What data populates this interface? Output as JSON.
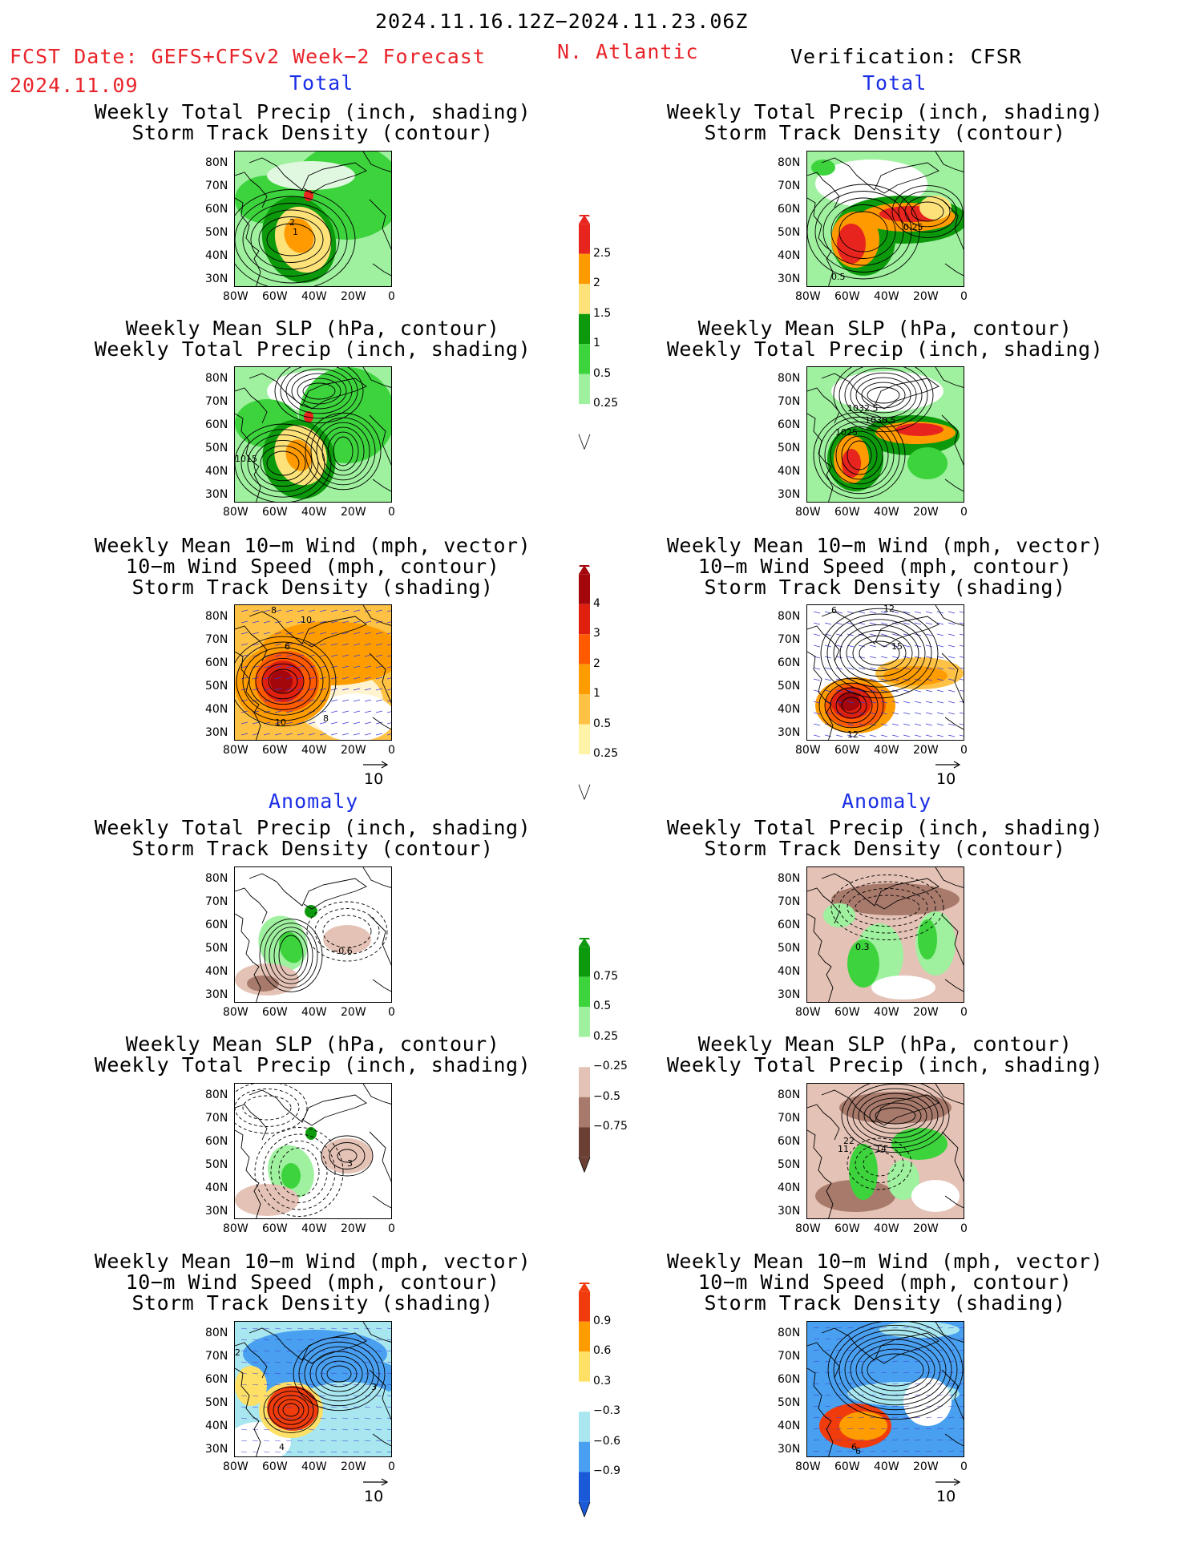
{
  "header": {
    "period": "2024.11.16.12Z−2024.11.23.06Z",
    "fcst_label": "FCST Date: GEFS+CFSv2 Week−2 Forecast",
    "fcst_date": "2024.11.09",
    "region": "N. Atlantic",
    "verification": "Verification: CFSR"
  },
  "sections": {
    "total": "Total",
    "anomaly": "Anomaly"
  },
  "titles": {
    "precip_track": "Weekly Total Precip (inch, shading)\nStorm Track Density (contour)",
    "slp_precip": "Weekly Mean SLP (hPa, contour)\nWeekly Total Precip (inch, shading)",
    "wind_track": "Weekly Mean 10−m Wind (mph, vector)\n10−m Wind Speed (mph, contour)\nStorm Track Density (shading)"
  },
  "axes": {
    "lat": [
      "80N",
      "70N",
      "60N",
      "50N",
      "40N",
      "30N"
    ],
    "lon": [
      "80W",
      "60W",
      "40W",
      "20W",
      "0"
    ]
  },
  "vector_ref": "10",
  "colorbars": {
    "precip_total": {
      "labels": [
        "2.5",
        "2",
        "1.5",
        "1",
        "0.5",
        "0.25"
      ],
      "colors": [
        "#e8241e",
        "#ff9a00",
        "#fde27a",
        "#0c9a0c",
        "#3dd33d",
        "#9ff09f",
        "#ffffff"
      ]
    },
    "track_total": {
      "labels": [
        "4",
        "3",
        "2",
        "1",
        "0.5",
        "0.25"
      ],
      "colors": [
        "#a3060b",
        "#e0200f",
        "#ff5a00",
        "#ff9d00",
        "#ffc245",
        "#fff3a8",
        "#ffffff"
      ]
    },
    "precip_anom": {
      "labels": [
        "0.75",
        "0.5",
        "0.25",
        "−0.25",
        "−0.5",
        "−0.75"
      ],
      "colors": [
        "#0c9a0c",
        "#3dd33d",
        "#9ff09f",
        "#ffffff",
        "#e4c2b5",
        "#a87a6c",
        "#6b3f33"
      ]
    },
    "track_anom": {
      "labels": [
        "0.9",
        "0.6",
        "0.3",
        "−0.3",
        "−0.6",
        "−0.9"
      ],
      "colors": [
        "#f03c0c",
        "#ff9d00",
        "#ffe066",
        "#ffffff",
        "#a8e6f0",
        "#4aa0f0",
        "#1a5ad8"
      ]
    }
  },
  "contour_labels": {
    "l1": [
      "2",
      "1"
    ],
    "r1": [
      "0.25",
      "0.5"
    ],
    "l2": [
      "1015"
    ],
    "r2": [
      "1032.5",
      "1030.5",
      "1025"
    ],
    "l3": [
      "8",
      "10",
      "6",
      "10",
      "8"
    ],
    "r3": [
      "6",
      "12",
      "15",
      "12"
    ],
    "l4": [
      "−0.6"
    ],
    "r4": [
      "0.3"
    ],
    "l5": [
      "3"
    ],
    "r5": [
      "22",
      "11",
      "14"
    ],
    "l6": [
      "2",
      "3",
      "4"
    ],
    "r6": [
      "6",
      "6"
    ]
  }
}
